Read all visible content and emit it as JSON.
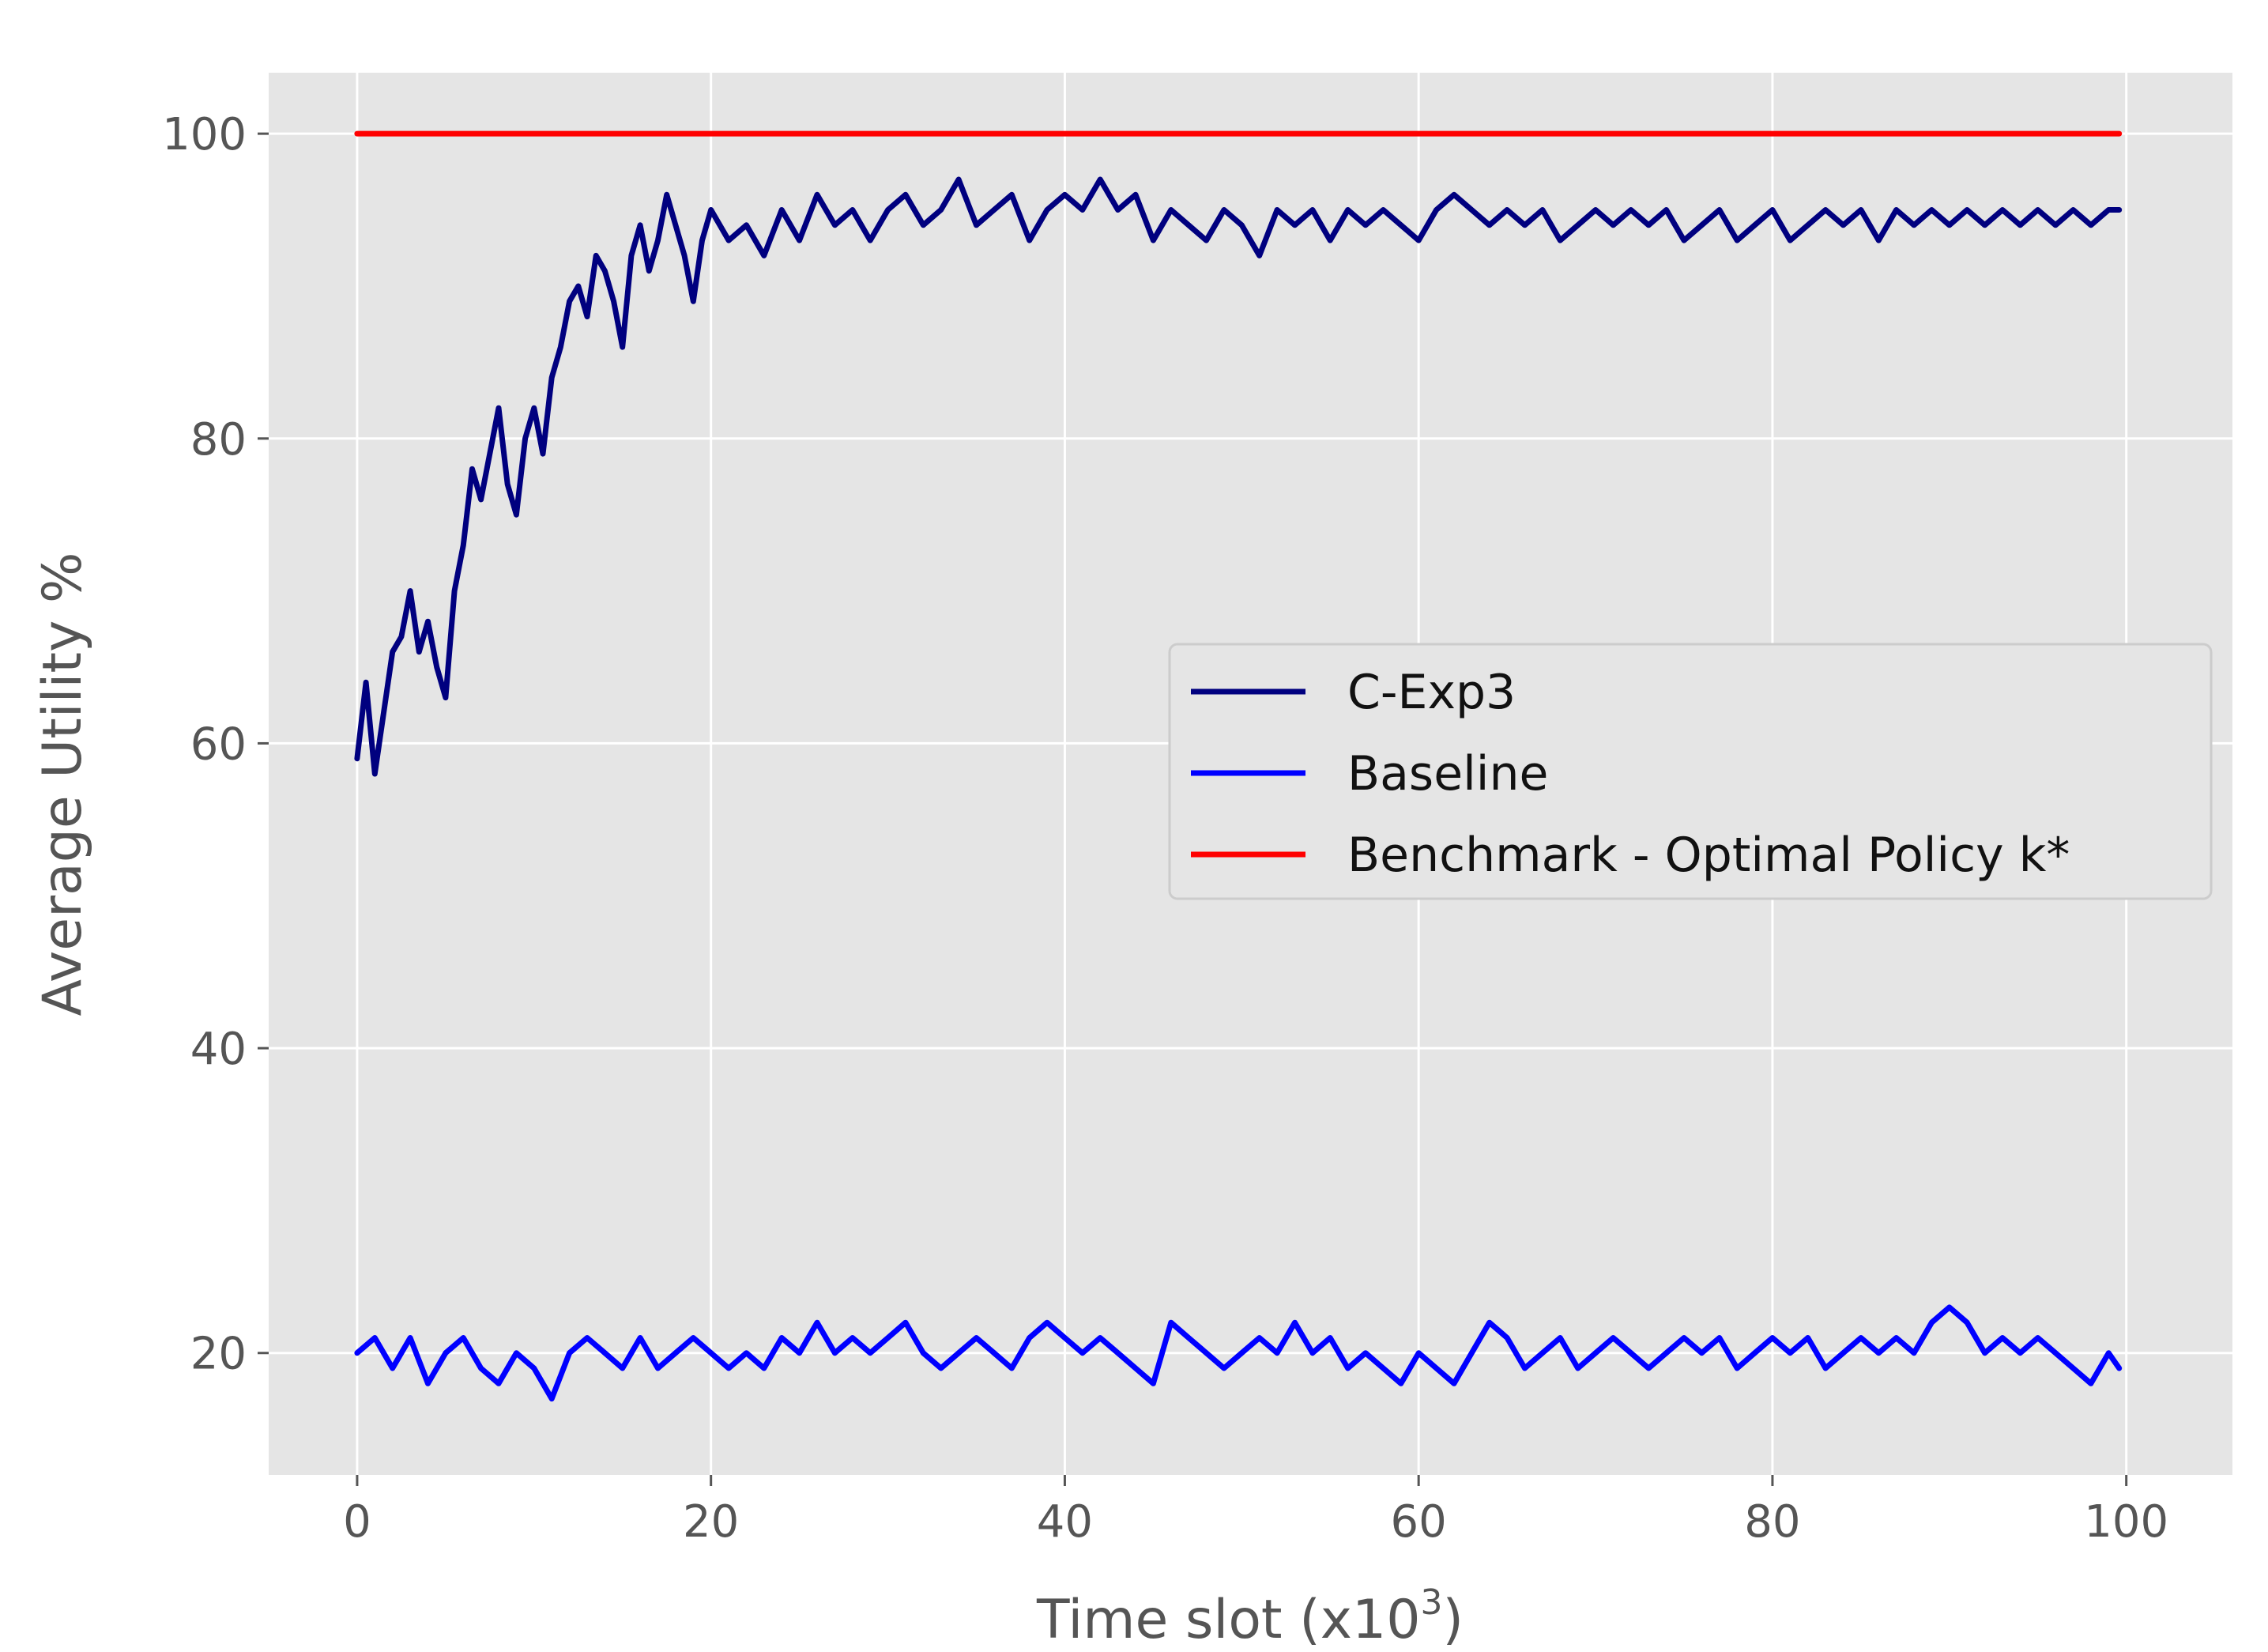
{
  "chart_data": {
    "type": "line",
    "xlabel": {
      "main": "Time slot (x10",
      "sup": "3",
      "close": ")"
    },
    "ylabel": "Average Utility %",
    "xlim": [
      -5,
      106
    ],
    "ylim": [
      12,
      104
    ],
    "xticks": [
      0,
      20,
      40,
      60,
      80,
      100
    ],
    "yticks": [
      20,
      40,
      60,
      80,
      100
    ],
    "grid": true,
    "legend_position": "center-right",
    "series": [
      {
        "name": "C-Exp3",
        "color": "#00007f",
        "points": [
          [
            0,
            59
          ],
          [
            0.5,
            64
          ],
          [
            1,
            58
          ],
          [
            1.5,
            62
          ],
          [
            2,
            66
          ],
          [
            2.5,
            67
          ],
          [
            3,
            70
          ],
          [
            3.5,
            66
          ],
          [
            4,
            68
          ],
          [
            4.5,
            65
          ],
          [
            5,
            63
          ],
          [
            5.5,
            70
          ],
          [
            6,
            73
          ],
          [
            6.5,
            78
          ],
          [
            7,
            76
          ],
          [
            7.5,
            79
          ],
          [
            8,
            82
          ],
          [
            8.5,
            77
          ],
          [
            9,
            75
          ],
          [
            9.5,
            80
          ],
          [
            10,
            82
          ],
          [
            10.5,
            79
          ],
          [
            11,
            84
          ],
          [
            11.5,
            86
          ],
          [
            12,
            89
          ],
          [
            12.5,
            90
          ],
          [
            13,
            88
          ],
          [
            13.5,
            92
          ],
          [
            14,
            91
          ],
          [
            14.5,
            89
          ],
          [
            15,
            86
          ],
          [
            15.5,
            92
          ],
          [
            16,
            94
          ],
          [
            16.5,
            91
          ],
          [
            17,
            93
          ],
          [
            17.5,
            96
          ],
          [
            18,
            94
          ],
          [
            18.5,
            92
          ],
          [
            19,
            89
          ],
          [
            19.5,
            93
          ],
          [
            20,
            95
          ],
          [
            21,
            93
          ],
          [
            22,
            94
          ],
          [
            23,
            92
          ],
          [
            24,
            95
          ],
          [
            25,
            93
          ],
          [
            26,
            96
          ],
          [
            27,
            94
          ],
          [
            28,
            95
          ],
          [
            29,
            93
          ],
          [
            30,
            95
          ],
          [
            31,
            96
          ],
          [
            32,
            94
          ],
          [
            33,
            95
          ],
          [
            34,
            97
          ],
          [
            35,
            94
          ],
          [
            36,
            95
          ],
          [
            37,
            96
          ],
          [
            38,
            93
          ],
          [
            39,
            95
          ],
          [
            40,
            96
          ],
          [
            41,
            95
          ],
          [
            42,
            97
          ],
          [
            43,
            95
          ],
          [
            44,
            96
          ],
          [
            45,
            93
          ],
          [
            46,
            95
          ],
          [
            47,
            94
          ],
          [
            48,
            93
          ],
          [
            49,
            95
          ],
          [
            50,
            94
          ],
          [
            51,
            92
          ],
          [
            52,
            95
          ],
          [
            53,
            94
          ],
          [
            54,
            95
          ],
          [
            55,
            93
          ],
          [
            56,
            95
          ],
          [
            57,
            94
          ],
          [
            58,
            95
          ],
          [
            59,
            94
          ],
          [
            60,
            93
          ],
          [
            61,
            95
          ],
          [
            62,
            96
          ],
          [
            63,
            95
          ],
          [
            64,
            94
          ],
          [
            65,
            95
          ],
          [
            66,
            94
          ],
          [
            67,
            95
          ],
          [
            68,
            93
          ],
          [
            69,
            94
          ],
          [
            70,
            95
          ],
          [
            71,
            94
          ],
          [
            72,
            95
          ],
          [
            73,
            94
          ],
          [
            74,
            95
          ],
          [
            75,
            93
          ],
          [
            76,
            94
          ],
          [
            77,
            95
          ],
          [
            78,
            93
          ],
          [
            79,
            94
          ],
          [
            80,
            95
          ],
          [
            81,
            93
          ],
          [
            82,
            94
          ],
          [
            83,
            95
          ],
          [
            84,
            94
          ],
          [
            85,
            95
          ],
          [
            86,
            93
          ],
          [
            87,
            95
          ],
          [
            88,
            94
          ],
          [
            89,
            95
          ],
          [
            90,
            94
          ],
          [
            91,
            95
          ],
          [
            92,
            94
          ],
          [
            93,
            95
          ],
          [
            94,
            94
          ],
          [
            95,
            95
          ],
          [
            96,
            94
          ],
          [
            97,
            95
          ],
          [
            98,
            94
          ],
          [
            99,
            95
          ],
          [
            99.6,
            95
          ]
        ]
      },
      {
        "name": "Baseline",
        "color": "#0000ff",
        "points": [
          [
            0,
            20
          ],
          [
            1,
            21
          ],
          [
            2,
            19
          ],
          [
            3,
            21
          ],
          [
            4,
            18
          ],
          [
            5,
            20
          ],
          [
            6,
            21
          ],
          [
            7,
            19
          ],
          [
            8,
            18
          ],
          [
            9,
            20
          ],
          [
            10,
            19
          ],
          [
            11,
            17
          ],
          [
            12,
            20
          ],
          [
            13,
            21
          ],
          [
            14,
            20
          ],
          [
            15,
            19
          ],
          [
            16,
            21
          ],
          [
            17,
            19
          ],
          [
            18,
            20
          ],
          [
            19,
            21
          ],
          [
            20,
            20
          ],
          [
            21,
            19
          ],
          [
            22,
            20
          ],
          [
            23,
            19
          ],
          [
            24,
            21
          ],
          [
            25,
            20
          ],
          [
            26,
            22
          ],
          [
            27,
            20
          ],
          [
            28,
            21
          ],
          [
            29,
            20
          ],
          [
            30,
            21
          ],
          [
            31,
            22
          ],
          [
            32,
            20
          ],
          [
            33,
            19
          ],
          [
            34,
            20
          ],
          [
            35,
            21
          ],
          [
            36,
            20
          ],
          [
            37,
            19
          ],
          [
            38,
            21
          ],
          [
            39,
            22
          ],
          [
            40,
            21
          ],
          [
            41,
            20
          ],
          [
            42,
            21
          ],
          [
            43,
            20
          ],
          [
            44,
            19
          ],
          [
            45,
            18
          ],
          [
            46,
            22
          ],
          [
            47,
            21
          ],
          [
            48,
            20
          ],
          [
            49,
            19
          ],
          [
            50,
            20
          ],
          [
            51,
            21
          ],
          [
            52,
            20
          ],
          [
            53,
            22
          ],
          [
            54,
            20
          ],
          [
            55,
            21
          ],
          [
            56,
            19
          ],
          [
            57,
            20
          ],
          [
            58,
            19
          ],
          [
            59,
            18
          ],
          [
            60,
            20
          ],
          [
            61,
            19
          ],
          [
            62,
            18
          ],
          [
            63,
            20
          ],
          [
            64,
            22
          ],
          [
            65,
            21
          ],
          [
            66,
            19
          ],
          [
            67,
            20
          ],
          [
            68,
            21
          ],
          [
            69,
            19
          ],
          [
            70,
            20
          ],
          [
            71,
            21
          ],
          [
            72,
            20
          ],
          [
            73,
            19
          ],
          [
            74,
            20
          ],
          [
            75,
            21
          ],
          [
            76,
            20
          ],
          [
            77,
            21
          ],
          [
            78,
            19
          ],
          [
            79,
            20
          ],
          [
            80,
            21
          ],
          [
            81,
            20
          ],
          [
            82,
            21
          ],
          [
            83,
            19
          ],
          [
            84,
            20
          ],
          [
            85,
            21
          ],
          [
            86,
            20
          ],
          [
            87,
            21
          ],
          [
            88,
            20
          ],
          [
            89,
            22
          ],
          [
            90,
            23
          ],
          [
            91,
            22
          ],
          [
            92,
            20
          ],
          [
            93,
            21
          ],
          [
            94,
            20
          ],
          [
            95,
            21
          ],
          [
            96,
            20
          ],
          [
            97,
            19
          ],
          [
            98,
            18
          ],
          [
            99,
            20
          ],
          [
            99.6,
            19
          ]
        ]
      },
      {
        "name": "Benchmark - Optimal Policy k*",
        "color": "#ff0000",
        "points": [
          [
            0,
            100
          ],
          [
            99.6,
            100
          ]
        ]
      }
    ]
  }
}
